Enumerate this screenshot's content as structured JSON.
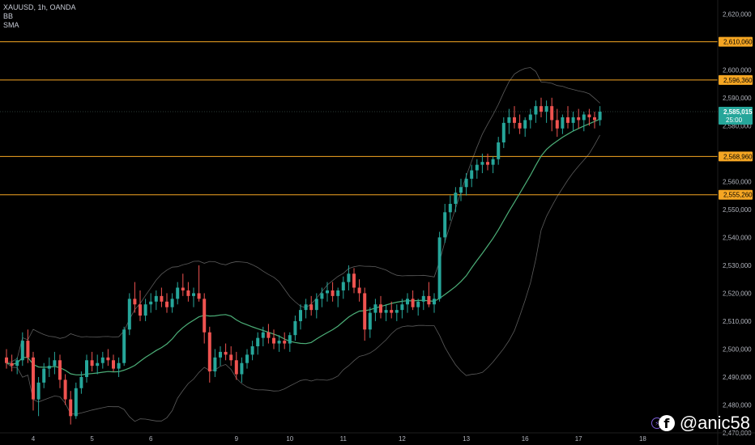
{
  "legend": {
    "symbol": "XAUUSD, 1h, OANDA",
    "indicator1": "BB",
    "indicator2": "SMA"
  },
  "watermark": {
    "handle": "@anic58",
    "icon": "facebook-icon"
  },
  "colors": {
    "up": "#26a69a",
    "down": "#ef5350",
    "level": "#f5a623",
    "sma": "#4caf78",
    "bands": "#5c5c5c",
    "price_label": "#26a69a",
    "text": "#b2b5be"
  },
  "chart_data": {
    "type": "candlestick",
    "symbol": "XAUUSD",
    "timeframe": "1h",
    "ylim": [
      2470,
      2625
    ],
    "y_ticks": [
      "2,620,000",
      "2,600,000",
      "2,590,000",
      "2,580,000",
      "2,560,000",
      "2,550,000",
      "2,540,000",
      "2,530,000",
      "2,520,000",
      "2,510,000",
      "2,500,000",
      "2,490,000",
      "2,480,000",
      "2,470,000"
    ],
    "y_tick_values": [
      2620,
      2600,
      2590,
      2580,
      2560,
      2550,
      2540,
      2530,
      2520,
      2510,
      2500,
      2490,
      2480,
      2470
    ],
    "x_ticks": [
      "4",
      "5",
      "6",
      "9",
      "10",
      "11",
      "12",
      "13",
      "16",
      "17",
      "18"
    ],
    "x_tick_index": [
      5,
      16,
      27,
      43,
      53,
      63,
      74,
      86,
      97,
      107,
      119
    ],
    "levels": [
      {
        "value": 2610.06,
        "label": "2,610,060"
      },
      {
        "value": 2596.36,
        "label": "2,596,360"
      },
      {
        "value": 2568.96,
        "label": "2,568,960"
      },
      {
        "value": 2555.26,
        "label": "2,555,260"
      }
    ],
    "last_price": {
      "value": 2585.015,
      "label": "2,585,015",
      "countdown": "25:00"
    },
    "ohlc": [
      [
        2497,
        2500,
        2493,
        2495
      ],
      [
        2495,
        2498,
        2492,
        2494
      ],
      [
        2494,
        2497,
        2491,
        2496
      ],
      [
        2496,
        2506,
        2494,
        2503
      ],
      [
        2503,
        2507,
        2495,
        2497
      ],
      [
        2497,
        2499,
        2478,
        2482
      ],
      [
        2482,
        2490,
        2476,
        2488
      ],
      [
        2488,
        2495,
        2486,
        2493
      ],
      [
        2493,
        2497,
        2490,
        2494
      ],
      [
        2494,
        2499,
        2491,
        2496
      ],
      [
        2496,
        2498,
        2486,
        2489
      ],
      [
        2489,
        2491,
        2480,
        2482
      ],
      [
        2482,
        2485,
        2473,
        2476
      ],
      [
        2476,
        2488,
        2475,
        2486
      ],
      [
        2486,
        2492,
        2484,
        2490
      ],
      [
        2490,
        2498,
        2488,
        2496
      ],
      [
        2496,
        2499,
        2492,
        2494
      ],
      [
        2494,
        2498,
        2491,
        2495
      ],
      [
        2495,
        2499,
        2493,
        2497
      ],
      [
        2497,
        2500,
        2494,
        2496
      ],
      [
        2496,
        2498,
        2492,
        2493
      ],
      [
        2493,
        2497,
        2490,
        2495
      ],
      [
        2495,
        2508,
        2494,
        2507
      ],
      [
        2507,
        2520,
        2505,
        2518
      ],
      [
        2518,
        2524,
        2513,
        2516
      ],
      [
        2516,
        2521,
        2510,
        2512
      ],
      [
        2512,
        2518,
        2510,
        2516
      ],
      [
        2516,
        2520,
        2513,
        2517
      ],
      [
        2517,
        2521,
        2514,
        2519
      ],
      [
        2519,
        2522,
        2515,
        2517
      ],
      [
        2517,
        2520,
        2513,
        2515
      ],
      [
        2515,
        2520,
        2513,
        2518
      ],
      [
        2518,
        2524,
        2516,
        2522
      ],
      [
        2522,
        2527,
        2519,
        2521
      ],
      [
        2521,
        2524,
        2517,
        2519
      ],
      [
        2519,
        2522,
        2515,
        2520
      ],
      [
        2520,
        2530,
        2517,
        2518
      ],
      [
        2518,
        2520,
        2502,
        2506
      ],
      [
        2506,
        2508,
        2488,
        2492
      ],
      [
        2492,
        2500,
        2490,
        2497
      ],
      [
        2497,
        2501,
        2494,
        2499
      ],
      [
        2499,
        2502,
        2496,
        2498
      ],
      [
        2498,
        2501,
        2494,
        2496
      ],
      [
        2496,
        2499,
        2489,
        2491
      ],
      [
        2491,
        2497,
        2488,
        2495
      ],
      [
        2495,
        2500,
        2493,
        2498
      ],
      [
        2498,
        2503,
        2496,
        2501
      ],
      [
        2501,
        2506,
        2498,
        2504
      ],
      [
        2504,
        2508,
        2501,
        2506
      ],
      [
        2506,
        2509,
        2502,
        2504
      ],
      [
        2504,
        2507,
        2500,
        2502
      ],
      [
        2502,
        2505,
        2499,
        2503
      ],
      [
        2503,
        2506,
        2500,
        2502
      ],
      [
        2502,
        2506,
        2499,
        2505
      ],
      [
        2505,
        2512,
        2503,
        2510
      ],
      [
        2510,
        2516,
        2507,
        2514
      ],
      [
        2514,
        2518,
        2511,
        2516
      ],
      [
        2516,
        2519,
        2512,
        2514
      ],
      [
        2514,
        2520,
        2511,
        2518
      ],
      [
        2518,
        2522,
        2515,
        2520
      ],
      [
        2520,
        2524,
        2517,
        2521
      ],
      [
        2521,
        2524,
        2517,
        2519
      ],
      [
        2519,
        2522,
        2515,
        2521
      ],
      [
        2521,
        2526,
        2518,
        2524
      ],
      [
        2524,
        2530,
        2521,
        2527
      ],
      [
        2527,
        2529,
        2520,
        2522
      ],
      [
        2522,
        2525,
        2517,
        2520
      ],
      [
        2520,
        2522,
        2503,
        2507
      ],
      [
        2507,
        2515,
        2504,
        2513
      ],
      [
        2513,
        2518,
        2510,
        2516
      ],
      [
        2516,
        2519,
        2511,
        2513
      ],
      [
        2513,
        2516,
        2510,
        2514
      ],
      [
        2514,
        2517,
        2511,
        2513
      ],
      [
        2513,
        2516,
        2510,
        2514
      ],
      [
        2514,
        2518,
        2511,
        2516
      ],
      [
        2516,
        2520,
        2513,
        2518
      ],
      [
        2518,
        2521,
        2514,
        2515
      ],
      [
        2515,
        2518,
        2512,
        2517
      ],
      [
        2517,
        2521,
        2514,
        2519
      ],
      [
        2519,
        2524,
        2515,
        2516
      ],
      [
        2516,
        2520,
        2513,
        2518
      ],
      [
        2518,
        2542,
        2517,
        2540
      ],
      [
        2540,
        2552,
        2538,
        2549
      ],
      [
        2549,
        2555,
        2546,
        2552
      ],
      [
        2552,
        2558,
        2549,
        2556
      ],
      [
        2556,
        2561,
        2553,
        2558
      ],
      [
        2558,
        2563,
        2555,
        2561
      ],
      [
        2561,
        2566,
        2558,
        2564
      ],
      [
        2564,
        2568,
        2561,
        2566
      ],
      [
        2566,
        2570,
        2563,
        2567
      ],
      [
        2567,
        2570,
        2564,
        2566
      ],
      [
        2566,
        2569,
        2563,
        2568
      ],
      [
        2568,
        2576,
        2566,
        2574
      ],
      [
        2574,
        2583,
        2572,
        2581
      ],
      [
        2581,
        2586,
        2577,
        2583
      ],
      [
        2583,
        2587,
        2579,
        2581
      ],
      [
        2581,
        2584,
        2577,
        2579
      ],
      [
        2579,
        2583,
        2576,
        2582
      ],
      [
        2582,
        2586,
        2579,
        2584
      ],
      [
        2584,
        2589,
        2581,
        2587
      ],
      [
        2587,
        2590,
        2583,
        2585
      ],
      [
        2585,
        2589,
        2581,
        2587
      ],
      [
        2587,
        2590,
        2578,
        2582
      ],
      [
        2582,
        2586,
        2576,
        2579
      ],
      [
        2579,
        2584,
        2577,
        2583
      ],
      [
        2583,
        2587,
        2579,
        2581
      ],
      [
        2581,
        2585,
        2578,
        2583
      ],
      [
        2583,
        2586,
        2579,
        2582
      ],
      [
        2582,
        2585,
        2578,
        2584
      ],
      [
        2584,
        2586,
        2580,
        2583
      ],
      [
        2583,
        2585,
        2579,
        2582
      ],
      [
        2582,
        2587,
        2580,
        2585
      ]
    ]
  }
}
